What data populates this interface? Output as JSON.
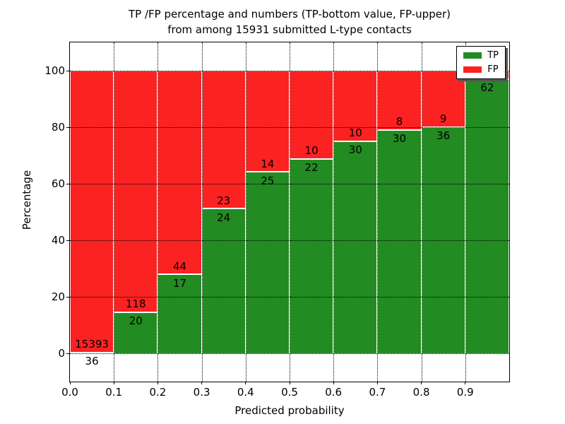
{
  "chart_data": {
    "type": "bar",
    "stacked": true,
    "title_lines": [
      "TP /FP percentage and numbers (TP-bottom value, FP-upper)",
      "from among 15931 submitted L-type contacts"
    ],
    "xlabel": "Predicted probability",
    "ylabel": "Percentage",
    "xlim": [
      0.0,
      1.0
    ],
    "ylim": [
      -10,
      110
    ],
    "xticks": [
      0.0,
      0.1,
      0.2,
      0.3,
      0.4,
      0.5,
      0.6,
      0.7,
      0.8,
      0.9
    ],
    "xtick_labels": [
      "0.0",
      "0.1",
      "0.2",
      "0.3",
      "0.4",
      "0.5",
      "0.6",
      "0.7",
      "0.8",
      "0.9"
    ],
    "yticks": [
      0,
      20,
      40,
      60,
      80,
      100
    ],
    "ytick_labels": [
      "0",
      "20",
      "40",
      "60",
      "80",
      "100"
    ],
    "grid": true,
    "colors": {
      "tp": "#228b22",
      "fp": "#fb2222"
    },
    "legend": {
      "position": "upper right",
      "entries": [
        {
          "label": "TP",
          "color": "#228b22"
        },
        {
          "label": "FP",
          "color": "#fb2222"
        }
      ]
    },
    "bins": [
      {
        "x0": 0.0,
        "x1": 0.1,
        "tp": 36,
        "fp": 15393,
        "tp_pct": 0.23
      },
      {
        "x0": 0.1,
        "x1": 0.2,
        "tp": 20,
        "fp": 118,
        "tp_pct": 14.49
      },
      {
        "x0": 0.2,
        "x1": 0.3,
        "tp": 17,
        "fp": 44,
        "tp_pct": 27.87
      },
      {
        "x0": 0.3,
        "x1": 0.4,
        "tp": 24,
        "fp": 23,
        "tp_pct": 51.06
      },
      {
        "x0": 0.4,
        "x1": 0.5,
        "tp": 25,
        "fp": 14,
        "tp_pct": 64.1
      },
      {
        "x0": 0.5,
        "x1": 0.6,
        "tp": 22,
        "fp": 10,
        "tp_pct": 68.75
      },
      {
        "x0": 0.6,
        "x1": 0.7,
        "tp": 30,
        "fp": 10,
        "tp_pct": 75.0
      },
      {
        "x0": 0.7,
        "x1": 0.8,
        "tp": 30,
        "fp": 8,
        "tp_pct": 78.95
      },
      {
        "x0": 0.8,
        "x1": 0.9,
        "tp": 36,
        "fp": 9,
        "tp_pct": 80.0
      },
      {
        "x0": 0.9,
        "x1": 1.0,
        "tp": 62,
        "fp": null,
        "tp_pct": 96.9
      }
    ]
  }
}
